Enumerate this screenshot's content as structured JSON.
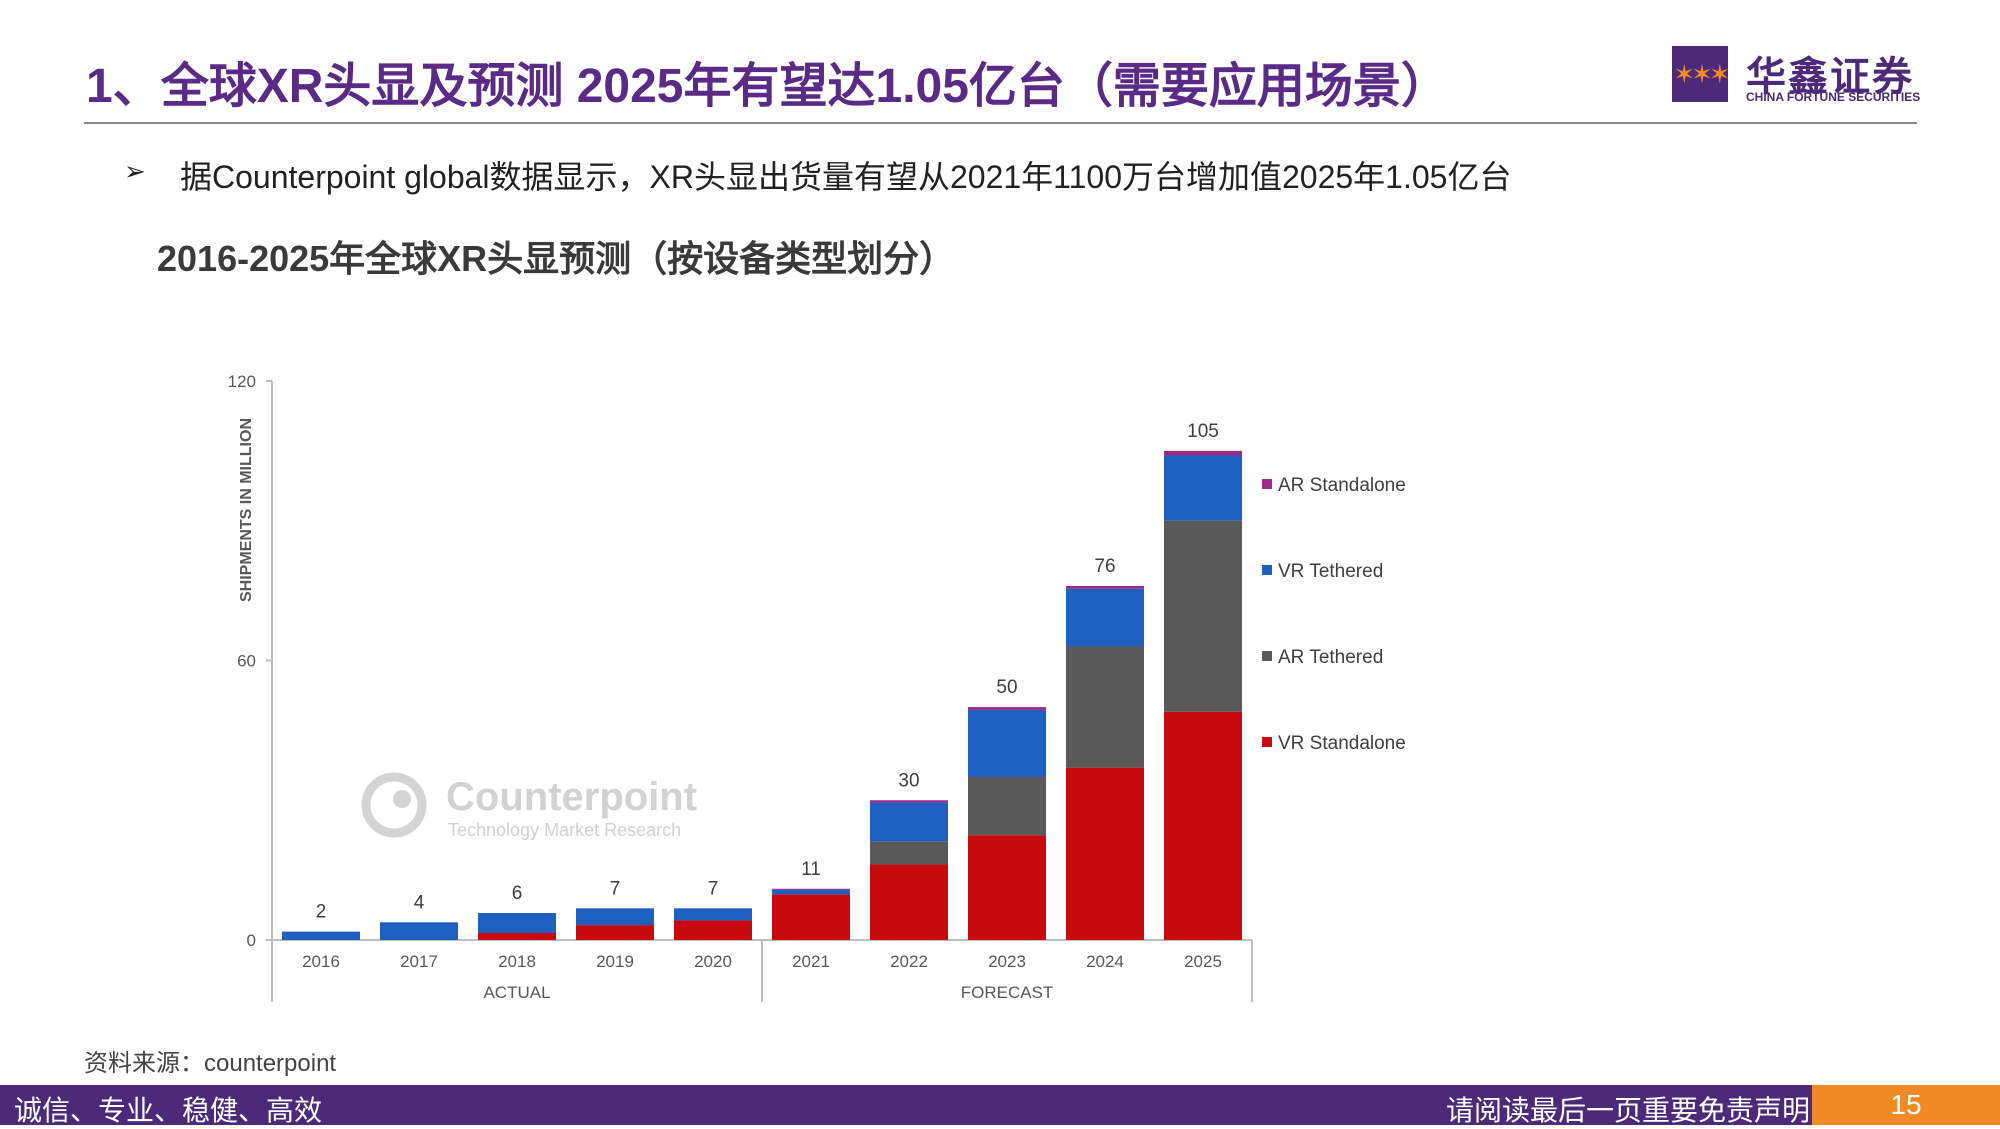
{
  "slide": {
    "title": "1、全球XR头显及预测 2025年有望达1.05亿台（需要应用场景）",
    "bullet_marker": "➢",
    "bullet": "据Counterpoint global数据显示，XR头显出货量有望从2021年1100万台增加值2025年1.05亿台",
    "chart_heading": "2016-2025年全球XR头显预测（按设备类型划分）",
    "source": "资料来源：counterpoint",
    "page_number": "15"
  },
  "logo": {
    "mark": "✶✶✶",
    "name_cn": "华鑫证券",
    "name_en": "CHINA FORTUNE SECURITIES"
  },
  "footer": {
    "left_text": "诚信、专业、稳健、高效",
    "right_text": "请阅读最后一页重要免责声明"
  },
  "watermark": {
    "name": "Counterpoint",
    "tagline": "Technology Market Research"
  },
  "chart_data": {
    "type": "bar",
    "stacked": true,
    "categories": [
      "2016",
      "2017",
      "2018",
      "2019",
      "2020",
      "2021",
      "2022",
      "2023",
      "2024",
      "2025"
    ],
    "series": [
      {
        "name": "VR Standalone",
        "color": "#c8090e",
        "values": [
          0,
          0,
          1.5,
          3.2,
          4.2,
          9.8,
          16.2,
          22.5,
          37,
          49
        ]
      },
      {
        "name": "AR Tethered",
        "color": "#595959",
        "values": [
          0,
          0,
          0,
          0,
          0,
          0,
          5,
          12.5,
          26,
          41
        ]
      },
      {
        "name": "VR Tethered",
        "color": "#1f5fbf",
        "values": [
          1.8,
          3.8,
          4.3,
          3.6,
          2.6,
          1,
          8.3,
          14.4,
          12.4,
          14
        ]
      },
      {
        "name": "AR Standalone",
        "color": "#9b2a8a",
        "values": [
          0,
          0,
          0,
          0,
          0,
          0.2,
          0.5,
          0.6,
          0.6,
          1
        ]
      }
    ],
    "totals": [
      "2",
      "4",
      "6",
      "7",
      "7",
      "11",
      "30",
      "50",
      "76",
      "105"
    ],
    "legend_order": [
      "AR Standalone",
      "VR Tethered",
      "AR Tethered",
      "VR Standalone"
    ],
    "legend_position": "right",
    "ylabel": "SHIPMENTS IN MILLION",
    "ylim": [
      0,
      120
    ],
    "yticks": [
      "0",
      "60",
      "120"
    ],
    "groups": [
      {
        "label": "ACTUAL",
        "from": "2016",
        "to": "2020"
      },
      {
        "label": "FORECAST",
        "from": "2021",
        "to": "2025"
      }
    ],
    "grid": false
  }
}
